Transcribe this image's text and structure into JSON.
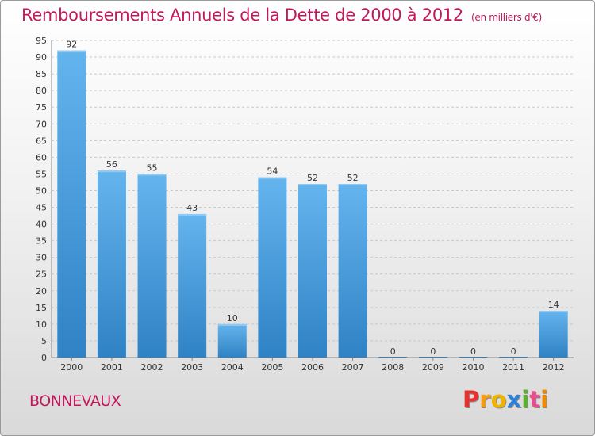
{
  "header": {
    "title": "Remboursements Annuels de la Dette de 2000 à 2012",
    "unit": "(en milliers d'€)"
  },
  "footer": {
    "town": "BONNEVAUX",
    "logo_letters": [
      "P",
      "r",
      "o",
      "x",
      "i",
      "t",
      "i"
    ],
    "logo_colors": [
      "#e8312f",
      "#f39c12",
      "#f0b400",
      "#2f7fd6",
      "#5ab031",
      "#e74c8b",
      "#f08a00"
    ]
  },
  "colors": {
    "bar_light": "#64b4ee",
    "bar_dark": "#2f82c4",
    "grid": "#c8c8c8",
    "title": "#c2185b"
  },
  "chart_data": {
    "type": "bar",
    "title": "Remboursements Annuels de la Dette de 2000 à 2012",
    "xlabel": "",
    "ylabel": "",
    "categories": [
      "2000",
      "2001",
      "2002",
      "2003",
      "2004",
      "2005",
      "2006",
      "2007",
      "2008",
      "2009",
      "2010",
      "2011",
      "2012"
    ],
    "values": [
      92,
      56,
      55,
      43,
      10,
      54,
      52,
      52,
      0,
      0,
      0,
      0,
      14
    ],
    "ylim": [
      0,
      95
    ],
    "yticks": [
      0,
      5,
      10,
      15,
      20,
      25,
      30,
      35,
      40,
      45,
      50,
      55,
      60,
      65,
      70,
      75,
      80,
      85,
      90,
      95
    ],
    "grid": "horizontal dashed",
    "legend": "none"
  }
}
